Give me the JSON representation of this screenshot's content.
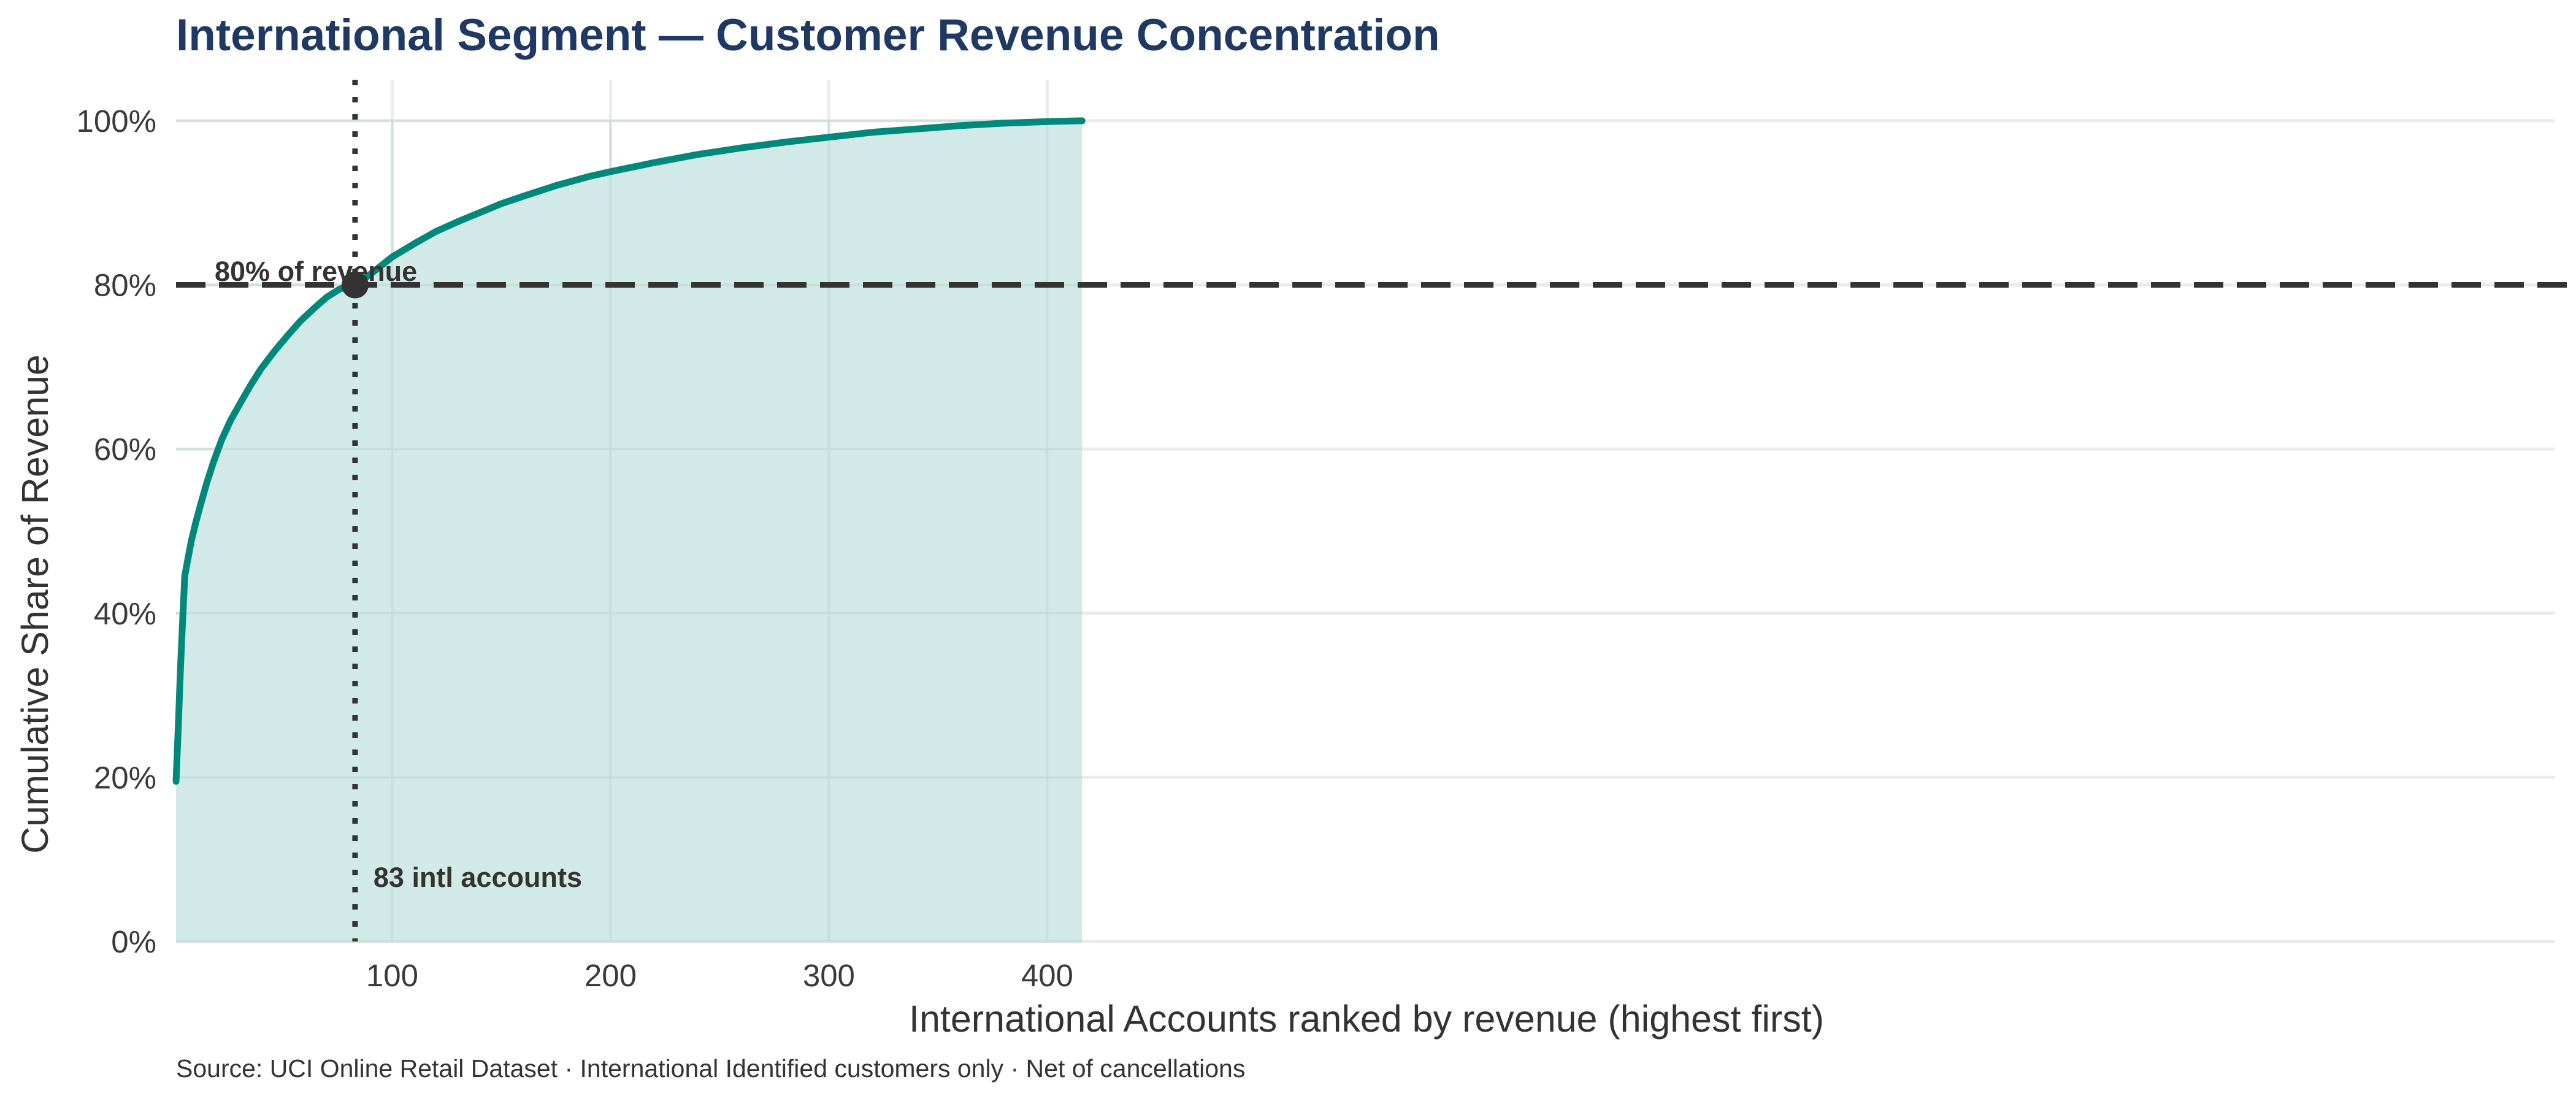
{
  "chart_data": {
    "type": "area",
    "title": "International Segment — Customer Revenue Concentration",
    "xlabel": "International Accounts ranked by revenue (highest first)",
    "ylabel": "Cumulative Share of Revenue",
    "source": "Source: UCI Online Retail Dataset · International Identified customers only · Net of cancellations",
    "xlim": [
      1,
      437
    ],
    "ylim": [
      0,
      105
    ],
    "x_ticks": [
      100,
      200,
      300,
      400
    ],
    "y_ticks": [
      0,
      20,
      40,
      60,
      80,
      100
    ],
    "y_tick_labels": [
      "0%",
      "20%",
      "40%",
      "60%",
      "80%",
      "100%"
    ],
    "grid": true,
    "series": [
      {
        "x": [
          1,
          2,
          3,
          4,
          5,
          6,
          8,
          10,
          12,
          15,
          18,
          22,
          26,
          30,
          35,
          40,
          46,
          52,
          58,
          64,
          70,
          76,
          83,
          90,
          100,
          110,
          120,
          130,
          140,
          150,
          160,
          175,
          190,
          200,
          220,
          240,
          260,
          280,
          300,
          320,
          340,
          360,
          380,
          400,
          416
        ],
        "y": [
          19.5,
          26,
          33,
          39,
          44.5,
          46,
          48.8,
          51,
          53,
          55.8,
          58.3,
          61.2,
          63.5,
          65.4,
          67.7,
          69.8,
          71.9,
          73.8,
          75.6,
          77.1,
          78.5,
          79.5,
          80,
          81.3,
          83.4,
          85,
          86.5,
          87.7,
          88.8,
          89.9,
          90.8,
          92.1,
          93.2,
          93.8,
          94.9,
          95.9,
          96.7,
          97.4,
          98,
          98.6,
          99,
          99.4,
          99.7,
          99.9,
          100
        ],
        "color": "#00897b",
        "fill": "#d0e9e6"
      }
    ],
    "reference_line": {
      "y": 80,
      "label": "80% of revenue",
      "color": "#333333"
    },
    "marker": {
      "x": 83,
      "y": 80,
      "label": "83 intl accounts",
      "color": "#333333"
    }
  }
}
